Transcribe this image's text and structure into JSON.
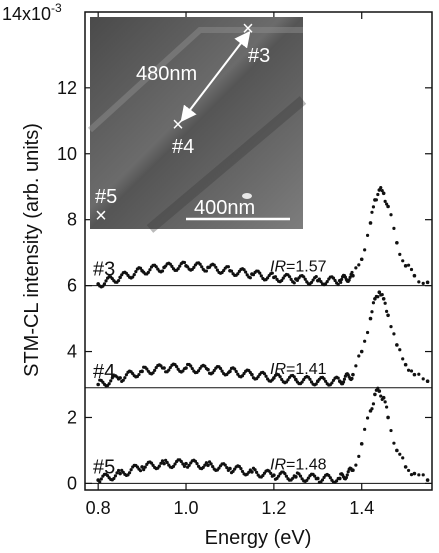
{
  "chart_data": {
    "type": "scatter",
    "xlabel": "Energy (eV)",
    "ylabel": "STM-CL intensity (arb. units)",
    "xlim": [
      0.77,
      1.56
    ],
    "ylim": [
      -0.2,
      14.3
    ],
    "y_multiplier_label": "14x10",
    "y_multiplier_exponent": "-3",
    "x_ticks": [
      {
        "value": 0.8,
        "label": "0.8"
      },
      {
        "value": 1.0,
        "label": "1.0"
      },
      {
        "value": 1.2,
        "label": "1.2"
      },
      {
        "value": 1.4,
        "label": "1.4"
      }
    ],
    "y_ticks": [
      {
        "value": 0,
        "label": "0"
      },
      {
        "value": 2,
        "label": "2"
      },
      {
        "value": 4,
        "label": "4"
      },
      {
        "value": 6,
        "label": "6"
      },
      {
        "value": 8,
        "label": "8"
      },
      {
        "value": 10,
        "label": "10"
      },
      {
        "value": 12,
        "label": "12"
      }
    ],
    "series": [
      {
        "name": "#3",
        "baseline": 6.0,
        "ir_prefix": "IR",
        "ir_value": "=1.57",
        "x": [
          0.8,
          0.85,
          0.9,
          0.95,
          1.0,
          1.05,
          1.1,
          1.15,
          1.2,
          1.25,
          1.3,
          1.35,
          1.38,
          1.4,
          1.42,
          1.43,
          1.44,
          1.45,
          1.46,
          1.48,
          1.5,
          1.52,
          1.55
        ],
        "y": [
          6.05,
          6.25,
          6.45,
          6.55,
          6.6,
          6.55,
          6.45,
          6.35,
          6.25,
          6.2,
          6.15,
          6.15,
          6.3,
          6.8,
          7.9,
          8.6,
          8.9,
          8.8,
          8.4,
          7.3,
          6.6,
          6.3,
          6.1
        ]
      },
      {
        "name": "#4",
        "baseline": 2.9,
        "ir_prefix": "IR",
        "ir_value": "=1.41",
        "x": [
          0.8,
          0.85,
          0.9,
          0.95,
          1.0,
          1.05,
          1.1,
          1.15,
          1.2,
          1.25,
          1.3,
          1.35,
          1.38,
          1.4,
          1.42,
          1.43,
          1.44,
          1.45,
          1.46,
          1.48,
          1.5,
          1.52,
          1.55
        ],
        "y": [
          3.0,
          3.2,
          3.4,
          3.5,
          3.5,
          3.45,
          3.4,
          3.3,
          3.2,
          3.15,
          3.1,
          3.1,
          3.3,
          4.0,
          5.0,
          5.6,
          5.8,
          5.6,
          5.1,
          4.2,
          3.6,
          3.3,
          3.1
        ]
      },
      {
        "name": "#5",
        "baseline": 0.0,
        "ir_prefix": "IR",
        "ir_value": "=1.48",
        "x": [
          0.8,
          0.85,
          0.9,
          0.95,
          1.0,
          1.05,
          1.1,
          1.15,
          1.2,
          1.25,
          1.3,
          1.35,
          1.38,
          1.4,
          1.42,
          1.43,
          1.44,
          1.45,
          1.46,
          1.48,
          1.5,
          1.52,
          1.55
        ],
        "y": [
          0.1,
          0.3,
          0.5,
          0.6,
          0.6,
          0.55,
          0.45,
          0.35,
          0.25,
          0.2,
          0.15,
          0.15,
          0.4,
          1.2,
          2.2,
          2.7,
          2.8,
          2.6,
          2.0,
          1.0,
          0.5,
          0.3,
          0.1
        ]
      }
    ],
    "inset": {
      "type": "STM topography image",
      "distance_label": "480nm",
      "scale_bar_label": "400nm",
      "markers": [
        "#3",
        "#4",
        "#5"
      ]
    }
  }
}
